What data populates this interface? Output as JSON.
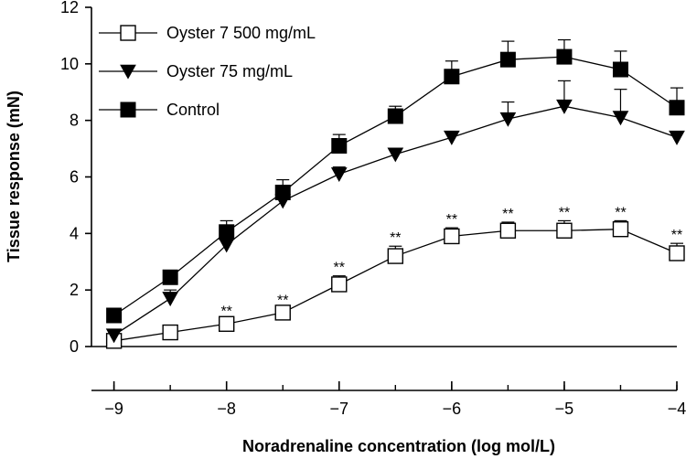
{
  "chart_data": {
    "type": "line",
    "title": "",
    "xlabel": "Noradrenaline concentration (log mol/L)",
    "ylabel": "Tissue response (mN)",
    "x": [
      -9,
      -8.5,
      -8,
      -7.5,
      -7,
      -6.5,
      -6,
      -5.5,
      -5,
      -4.5,
      -4
    ],
    "x_ticks": [
      -9,
      -8,
      -7,
      -6,
      -5,
      -4
    ],
    "x_tick_labels": [
      "−9",
      "−8",
      "−7",
      "−6",
      "−5",
      "−4"
    ],
    "xlim": [
      -9.2,
      -4
    ],
    "y_ticks": [
      0,
      2,
      4,
      6,
      8,
      10,
      12
    ],
    "y_tick_labels": [
      "0",
      "2",
      "4",
      "6",
      "8",
      "10",
      "12"
    ],
    "ylim": [
      0,
      12
    ],
    "grid": false,
    "legend_position": "top-left",
    "series": [
      {
        "name": "Oyster 7 500 mg/mL",
        "marker": "open-square",
        "values": [
          0.2,
          0.5,
          0.8,
          1.2,
          2.2,
          3.2,
          3.9,
          4.1,
          4.1,
          4.15,
          3.3
        ],
        "error": [
          0.1,
          0.1,
          0.15,
          0.15,
          0.3,
          0.35,
          0.3,
          0.3,
          0.35,
          0.3,
          0.35
        ],
        "significance": [
          "",
          "",
          "**",
          "**",
          "**",
          "**",
          "**",
          "**",
          "**",
          "**",
          "**"
        ]
      },
      {
        "name": "Oyster 75 mg/mL",
        "marker": "filled-triangle-down",
        "values": [
          0.4,
          1.7,
          3.6,
          5.15,
          6.1,
          6.8,
          7.4,
          8.05,
          8.5,
          8.1,
          7.4
        ],
        "error": [
          0.2,
          0.3,
          0.3,
          0.2,
          0.25,
          0.2,
          0.2,
          0.6,
          0.9,
          1.0,
          0.2
        ]
      },
      {
        "name": "Control",
        "marker": "filled-square",
        "values": [
          1.1,
          2.45,
          4.05,
          5.45,
          7.1,
          8.15,
          9.55,
          10.15,
          10.25,
          9.8,
          8.45
        ],
        "error": [
          0.15,
          0.2,
          0.4,
          0.45,
          0.4,
          0.35,
          0.55,
          0.65,
          0.6,
          0.65,
          0.7
        ]
      }
    ]
  }
}
